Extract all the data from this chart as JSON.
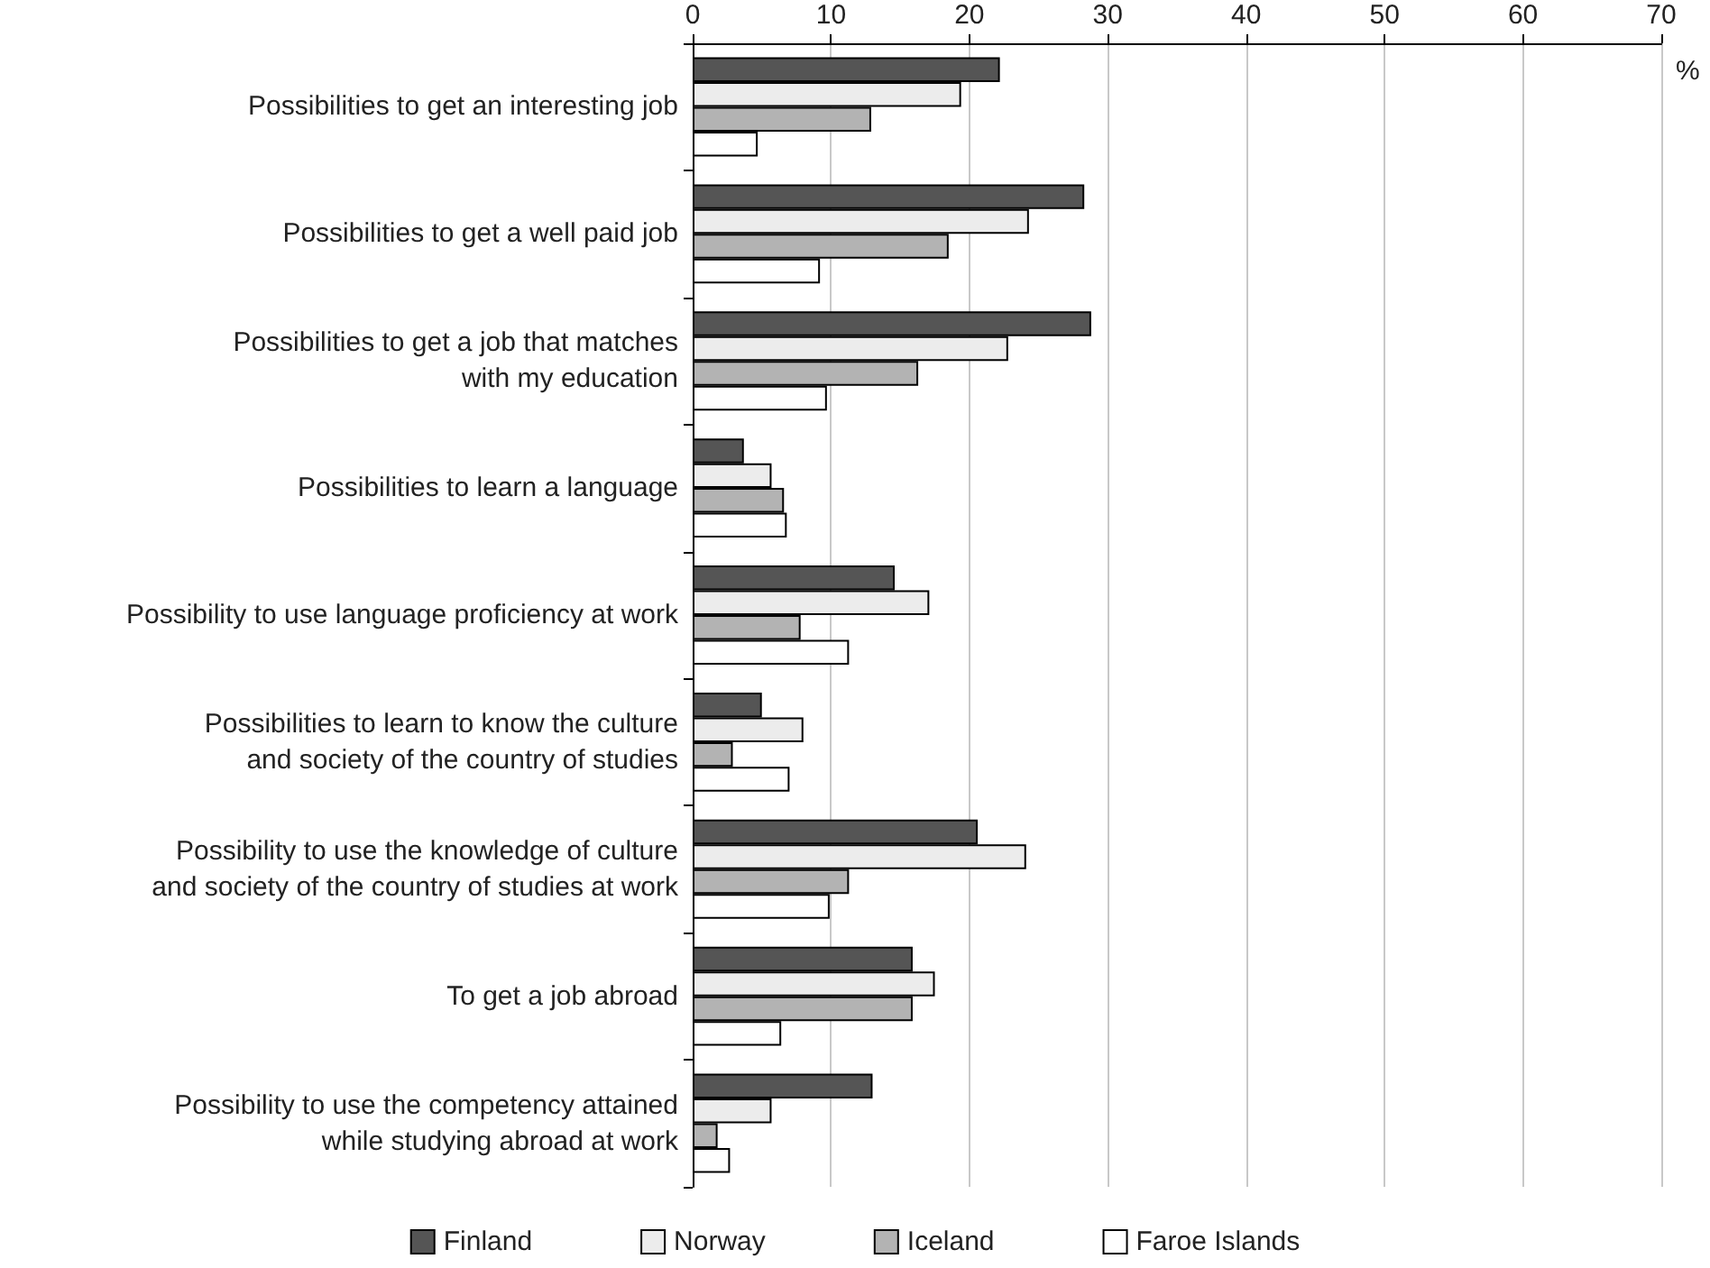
{
  "chart_data": {
    "type": "bar",
    "orientation": "horizontal",
    "xlabel": "%",
    "categories": [
      "Possibilities to get an interesting job",
      "Possibilities to get a well paid job",
      "Possibilities to get a job that matches\nwith my education",
      "Possibilities to learn a language",
      "Possibility to use language proficiency at work",
      "Possibilities to learn to know the culture\nand society of the country of studies",
      "Possibility to use the knowledge of culture\nand society of the country of studies at work",
      "To get a job abroad",
      "Possibility to use the competency attained\nwhile studying abroad at work"
    ],
    "series": [
      {
        "name": "Finland",
        "color": "#555555",
        "values": [
          22.2,
          28.3,
          28.8,
          3.7,
          14.6,
          5.0,
          20.6,
          15.9,
          13.0
        ]
      },
      {
        "name": "Norway",
        "color": "#ececec",
        "values": [
          19.4,
          24.3,
          22.8,
          5.7,
          17.1,
          8.0,
          24.1,
          17.5,
          5.7
        ]
      },
      {
        "name": "Iceland",
        "color": "#b3b3b3",
        "values": [
          12.9,
          18.5,
          16.3,
          6.6,
          7.8,
          2.9,
          11.3,
          15.9,
          1.8
        ]
      },
      {
        "name": "Faroe Islands",
        "color": "#ffffff",
        "values": [
          4.7,
          9.2,
          9.7,
          6.8,
          11.3,
          7.0,
          9.9,
          6.4,
          2.7
        ]
      }
    ],
    "xlim": [
      0,
      70
    ],
    "xticks": [
      0,
      10,
      20,
      30,
      40,
      50,
      60,
      70
    ],
    "grid": "x",
    "legend": "bottom"
  }
}
